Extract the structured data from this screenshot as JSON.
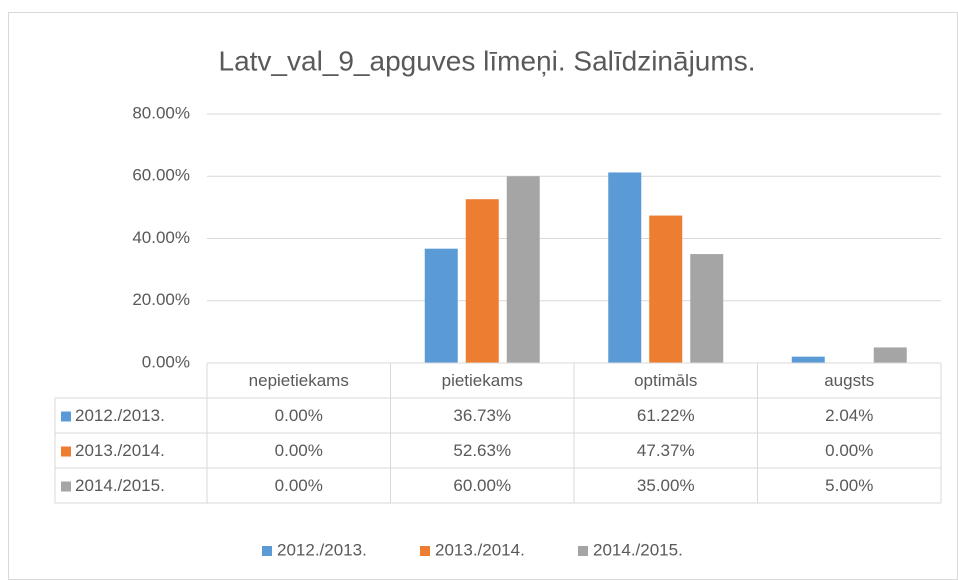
{
  "chart_data": {
    "type": "bar",
    "title": "Latv_val_9_apguves līmeņi. Salīdzinājums.",
    "categories": [
      "nepietiekams",
      "pietiekams",
      "optimāls",
      "augsts"
    ],
    "series": [
      {
        "name": "2012./2013.",
        "color": "#5b9bd5",
        "values": [
          0,
          36.73,
          61.22,
          2.04
        ],
        "value_labels": [
          "0.00%",
          "36.73%",
          "61.22%",
          "2.04%"
        ]
      },
      {
        "name": "2013./2014.",
        "color": "#ed7d31",
        "values": [
          0,
          52.63,
          47.37,
          0
        ],
        "value_labels": [
          "0.00%",
          "52.63%",
          "47.37%",
          "0.00%"
        ]
      },
      {
        "name": "2014./2015.",
        "color": "#a5a5a5",
        "values": [
          0,
          60,
          35,
          5
        ],
        "value_labels": [
          "0.00%",
          "60.00%",
          "35.00%",
          "5.00%"
        ]
      }
    ],
    "ylim": [
      0,
      80
    ],
    "yticks": [
      {
        "value": 0,
        "label": "0.00%"
      },
      {
        "value": 20,
        "label": "20.00%"
      },
      {
        "value": 40,
        "label": "40.00%"
      },
      {
        "value": 60,
        "label": "60.00%"
      },
      {
        "value": 80,
        "label": "80.00%"
      }
    ],
    "grid": true,
    "legend": "bottom"
  }
}
